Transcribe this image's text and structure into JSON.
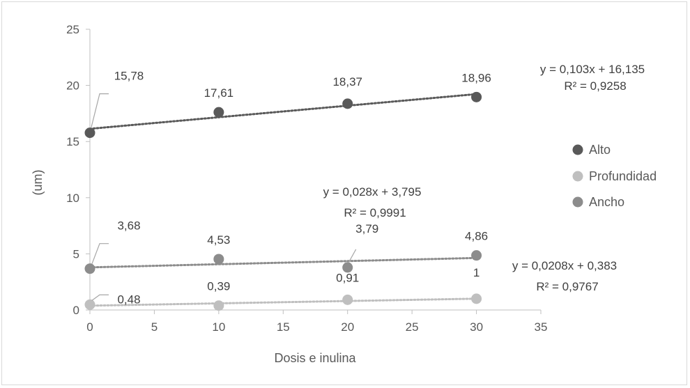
{
  "chart_data": {
    "type": "scatter",
    "xlabel": "Dosis e inulina",
    "ylabel": "(um)",
    "xlim": [
      0,
      35
    ],
    "ylim": [
      0,
      25
    ],
    "xticks": [
      "0",
      "5",
      "10",
      "15",
      "20",
      "25",
      "30",
      "35"
    ],
    "yticks": [
      "0",
      "5",
      "10",
      "15",
      "20",
      "25"
    ],
    "grid": false,
    "legend_position": "right",
    "x": [
      0,
      10,
      20,
      30
    ],
    "series": [
      {
        "name": "Alto",
        "color": "#595959",
        "values": [
          15.78,
          17.61,
          18.37,
          18.96
        ],
        "data_labels": [
          "15,78",
          "17,61",
          "18,37",
          "18,96"
        ],
        "trendline": {
          "slope": 0.103,
          "intercept": 16.135,
          "equation": "y = 0,103x + 16,135",
          "r2": "R² = 0,9258"
        }
      },
      {
        "name": "Profundidad",
        "color": "#bfbfbf",
        "values": [
          0.48,
          0.39,
          0.91,
          1.0
        ],
        "data_labels": [
          "0,48",
          "0,39",
          "0,91",
          "1"
        ],
        "trendline": {
          "slope": 0.0208,
          "intercept": 0.383,
          "equation": "y = 0,0208x + 0,383",
          "r2": "R² = 0,9767"
        }
      },
      {
        "name": "Ancho",
        "color": "#8c8c8c",
        "values": [
          3.68,
          4.53,
          3.79,
          4.86
        ],
        "data_labels": [
          "3,68",
          "4,53",
          "3,79",
          "4,86"
        ],
        "trendline": {
          "slope": 0.028,
          "intercept": 3.795,
          "equation": "y = 0,028x + 3,795",
          "r2": "R² = 0,9991"
        }
      }
    ]
  }
}
